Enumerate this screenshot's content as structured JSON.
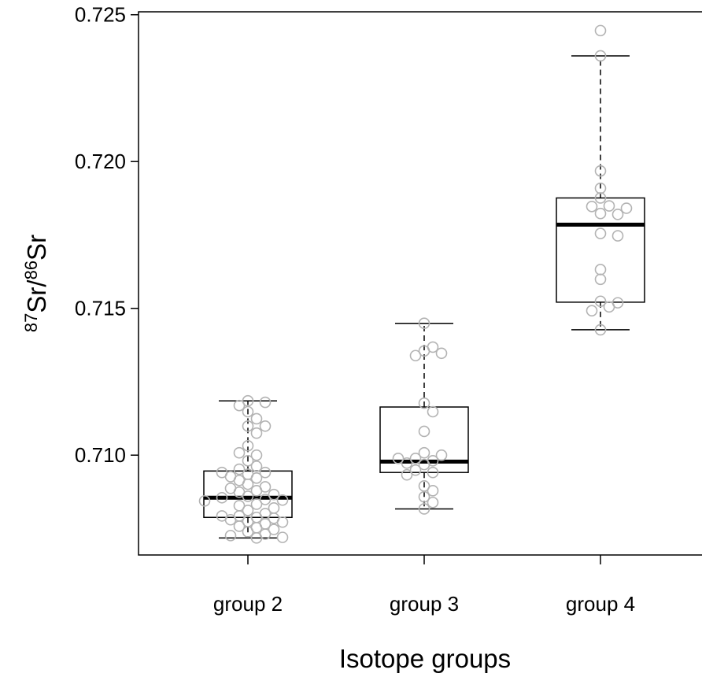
{
  "chart_data": {
    "type": "box",
    "xlabel": "Isotope groups",
    "ylabel": [
      "87",
      "Sr/",
      "86",
      "Sr"
    ],
    "categories": [
      "group 2",
      "group 3",
      "group 4"
    ],
    "ylim": [
      0.7066,
      0.7251
    ],
    "yticks": [
      {
        "value": 0.71,
        "label": "0.710"
      },
      {
        "value": 0.715,
        "label": "0.715"
      },
      {
        "value": 0.72,
        "label": "0.720"
      },
      {
        "value": 0.725,
        "label": "0.725"
      }
    ],
    "point_color": "#b3b3b3",
    "boxes": [
      {
        "low": 0.70718,
        "q1": 0.70788,
        "median": 0.70855,
        "q3": 0.70946,
        "high": 0.71185,
        "points": [
          0.71185,
          0.7118,
          0.71169,
          0.71148,
          0.71124,
          0.71099,
          0.71099,
          0.71075,
          0.71032,
          0.71,
          0.71008,
          0.70981,
          0.70962,
          0.70952,
          0.70941,
          0.70941,
          0.70935,
          0.70927,
          0.70922,
          0.70914,
          0.70901,
          0.70892,
          0.70887,
          0.70879,
          0.70874,
          0.70866,
          0.7086,
          0.70855,
          0.70849,
          0.70847,
          0.70844,
          0.70833,
          0.70828,
          0.7082,
          0.70812,
          0.70801,
          0.70793,
          0.70793,
          0.70788,
          0.70785,
          0.7078,
          0.70774,
          0.70772,
          0.70766,
          0.70758,
          0.70753,
          0.70747,
          0.70739,
          0.70731,
          0.70726,
          0.7072,
          0.70718
        ]
      },
      {
        "low": 0.70817,
        "q1": 0.70941,
        "median": 0.70978,
        "q3": 0.71164,
        "high": 0.71449,
        "points": [
          0.71449,
          0.71355,
          0.71368,
          0.71347,
          0.71339,
          0.71177,
          0.71148,
          0.71081,
          0.71008,
          0.71,
          0.70989,
          0.70981,
          0.70989,
          0.70973,
          0.70968,
          0.70949,
          0.70941,
          0.70933,
          0.70895,
          0.70879,
          0.70858,
          0.70839,
          0.70817
        ]
      },
      {
        "low": 0.71427,
        "q1": 0.71521,
        "median": 0.71785,
        "q3": 0.71876,
        "high": 0.7236,
        "points": [
          0.72446,
          0.7236,
          0.71968,
          0.71909,
          0.71876,
          0.71849,
          0.71847,
          0.71841,
          0.71823,
          0.7182,
          0.71755,
          0.71747,
          0.71632,
          0.71599,
          0.71524,
          0.71519,
          0.71505,
          0.71492,
          0.71427
        ]
      }
    ]
  }
}
